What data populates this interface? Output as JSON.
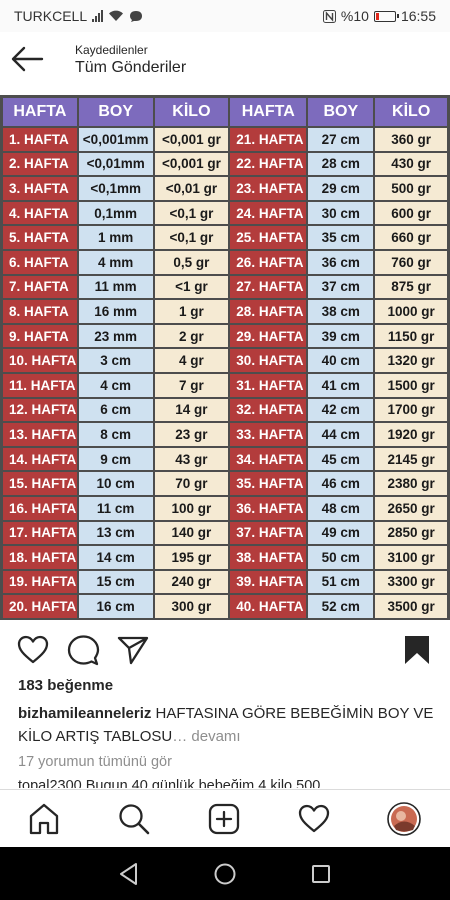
{
  "status_bar": {
    "carrier": "TURKCELL",
    "battery": "%10",
    "time": "16:55"
  },
  "header": {
    "subtitle": "Kaydedilenler",
    "title": "Tüm Gönderiler"
  },
  "growth_table": {
    "columns": [
      "HAFTA",
      "BOY",
      "KİLO",
      "HAFTA",
      "BOY",
      "KİLO"
    ],
    "rows": [
      {
        "week_a": "1. HAFTA",
        "boy_a": "<0,001mm",
        "kilo_a": "<0,001 gr",
        "week_b": "21. HAFTA",
        "boy_b": "27 cm",
        "kilo_b": "360 gr"
      },
      {
        "week_a": "2. HAFTA",
        "boy_a": "<0,01mm",
        "kilo_a": "<0,001 gr",
        "week_b": "22. HAFTA",
        "boy_b": "28 cm",
        "kilo_b": "430 gr"
      },
      {
        "week_a": "3. HAFTA",
        "boy_a": "<0,1mm",
        "kilo_a": "<0,01 gr",
        "week_b": "23. HAFTA",
        "boy_b": "29 cm",
        "kilo_b": "500 gr"
      },
      {
        "week_a": "4. HAFTA",
        "boy_a": "0,1mm",
        "kilo_a": "<0,1 gr",
        "week_b": "24. HAFTA",
        "boy_b": "30 cm",
        "kilo_b": "600 gr"
      },
      {
        "week_a": "5. HAFTA",
        "boy_a": "1 mm",
        "kilo_a": "<0,1 gr",
        "week_b": "25. HAFTA",
        "boy_b": "35 cm",
        "kilo_b": "660 gr"
      },
      {
        "week_a": "6. HAFTA",
        "boy_a": "4 mm",
        "kilo_a": "0,5 gr",
        "week_b": "26. HAFTA",
        "boy_b": "36 cm",
        "kilo_b": "760 gr"
      },
      {
        "week_a": "7. HAFTA",
        "boy_a": "11 mm",
        "kilo_a": "<1 gr",
        "week_b": "27. HAFTA",
        "boy_b": "37 cm",
        "kilo_b": "875 gr"
      },
      {
        "week_a": "8. HAFTA",
        "boy_a": "16 mm",
        "kilo_a": "1 gr",
        "week_b": "28. HAFTA",
        "boy_b": "38 cm",
        "kilo_b": "1000 gr"
      },
      {
        "week_a": "9. HAFTA",
        "boy_a": "23 mm",
        "kilo_a": "2 gr",
        "week_b": "29. HAFTA",
        "boy_b": "39 cm",
        "kilo_b": "1150 gr"
      },
      {
        "week_a": "10. HAFTA",
        "boy_a": "3 cm",
        "kilo_a": "4 gr",
        "week_b": "30. HAFTA",
        "boy_b": "40 cm",
        "kilo_b": "1320 gr"
      },
      {
        "week_a": "11. HAFTA",
        "boy_a": "4 cm",
        "kilo_a": "7 gr",
        "week_b": "31. HAFTA",
        "boy_b": "41 cm",
        "kilo_b": "1500 gr"
      },
      {
        "week_a": "12. HAFTA",
        "boy_a": "6 cm",
        "kilo_a": "14 gr",
        "week_b": "32. HAFTA",
        "boy_b": "42 cm",
        "kilo_b": "1700 gr"
      },
      {
        "week_a": "13. HAFTA",
        "boy_a": "8 cm",
        "kilo_a": "23 gr",
        "week_b": "33. HAFTA",
        "boy_b": "44 cm",
        "kilo_b": "1920 gr"
      },
      {
        "week_a": "14. HAFTA",
        "boy_a": "9 cm",
        "kilo_a": "43 gr",
        "week_b": "34. HAFTA",
        "boy_b": "45 cm",
        "kilo_b": "2145 gr"
      },
      {
        "week_a": "15. HAFTA",
        "boy_a": "10 cm",
        "kilo_a": "70 gr",
        "week_b": "35. HAFTA",
        "boy_b": "46 cm",
        "kilo_b": "2380 gr"
      },
      {
        "week_a": "16. HAFTA",
        "boy_a": "11 cm",
        "kilo_a": "100 gr",
        "week_b": "36. HAFTA",
        "boy_b": "48 cm",
        "kilo_b": "2650 gr"
      },
      {
        "week_a": "17. HAFTA",
        "boy_a": "13 cm",
        "kilo_a": "140 gr",
        "week_b": "37. HAFTA",
        "boy_b": "49 cm",
        "kilo_b": "2850 gr"
      },
      {
        "week_a": "18. HAFTA",
        "boy_a": "14 cm",
        "kilo_a": "195 gr",
        "week_b": "38. HAFTA",
        "boy_b": "50 cm",
        "kilo_b": "3100 gr"
      },
      {
        "week_a": "19. HAFTA",
        "boy_a": "15 cm",
        "kilo_a": "240 gr",
        "week_b": "39. HAFTA",
        "boy_b": "51 cm",
        "kilo_b": "3300 gr"
      },
      {
        "week_a": "20. HAFTA",
        "boy_a": "16 cm",
        "kilo_a": "300 gr",
        "week_b": "40. HAFTA",
        "boy_b": "52 cm",
        "kilo_b": "3500 gr"
      }
    ]
  },
  "post": {
    "likes": "183 beğenme",
    "username": "bizhamileanneleriz",
    "caption": "HAFTASINA GÖRE BEBEĞİMİN BOY VE KİLO ARTIŞ TABLOSU",
    "more_label": "… devamı",
    "comments_link": "17 yorumun tümünü gör",
    "comment_preview": "topal2300 Bugun 40 günlük bebeğim 4 kilo 500"
  },
  "icons": {
    "like": "heart-icon",
    "comment": "comment-icon",
    "share": "send-icon",
    "save": "bookmark-icon",
    "home": "home-icon",
    "search": "search-icon",
    "new_post": "add-post-icon",
    "activity": "heart-icon",
    "profile": "avatar"
  },
  "colors": {
    "week_cell": "#b33c3c",
    "boy_cell": "#cfe1f0",
    "kilo_cell": "#f5ead3",
    "header_cell": "#7d6bbd",
    "muted_text": "#8e8e8e"
  }
}
